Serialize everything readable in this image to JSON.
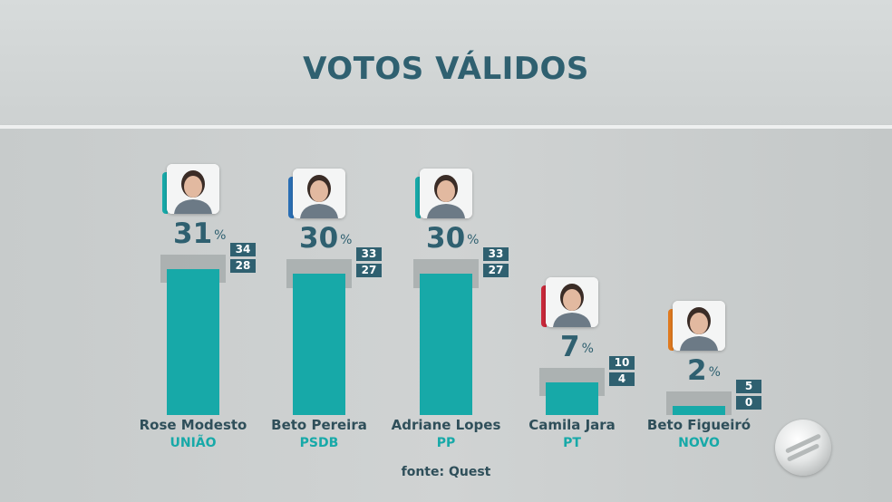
{
  "title": "VOTOS VÁLIDOS",
  "source": "fonte: Quest",
  "colors": {
    "title": "#2f6070",
    "bar": "#17a9a8",
    "range": "#a9aeae",
    "margin_box": "#2f6070",
    "party": "#17a9a8"
  },
  "chart_data": {
    "type": "bar",
    "title": "VOTOS VÁLIDOS",
    "categories": [
      "Rose Modesto",
      "Beto Pereira",
      "Adriane Lopes",
      "Camila Jara",
      "Beto Figueiró"
    ],
    "values": [
      31,
      30,
      30,
      7,
      2
    ],
    "unit": "%",
    "upper": [
      34,
      33,
      33,
      10,
      5
    ],
    "lower": [
      28,
      27,
      27,
      4,
      0
    ],
    "grid": false
  },
  "candidates": [
    {
      "name": "Rose Modesto",
      "party": "UNIÃO",
      "value": 31,
      "value_label": "31",
      "pct_sign": "%",
      "upper": 34,
      "upper_label": "34",
      "lower": 28,
      "lower_label": "28",
      "accent": "#17a9a8",
      "photo_icon": "portrait-icon"
    },
    {
      "name": "Beto Pereira",
      "party": "PSDB",
      "value": 30,
      "value_label": "30",
      "pct_sign": "%",
      "upper": 33,
      "upper_label": "33",
      "lower": 27,
      "lower_label": "27",
      "accent": "#2a6fb5",
      "photo_icon": "portrait-icon"
    },
    {
      "name": "Adriane Lopes",
      "party": "PP",
      "value": 30,
      "value_label": "30",
      "pct_sign": "%",
      "upper": 33,
      "upper_label": "33",
      "lower": 27,
      "lower_label": "27",
      "accent": "#17a9a8",
      "photo_icon": "portrait-icon"
    },
    {
      "name": "Camila Jara",
      "party": "PT",
      "value": 7,
      "value_label": "7",
      "pct_sign": "%",
      "upper": 10,
      "upper_label": "10",
      "lower": 4,
      "lower_label": "4",
      "accent": "#c8283a",
      "photo_icon": "portrait-icon"
    },
    {
      "name": "Beto Figueiró",
      "party": "NOVO",
      "value": 2,
      "value_label": "2",
      "pct_sign": "%",
      "upper": 5,
      "upper_label": "5",
      "lower": 0,
      "lower_label": "0",
      "accent": "#e07a1f",
      "photo_icon": "portrait-icon"
    }
  ]
}
